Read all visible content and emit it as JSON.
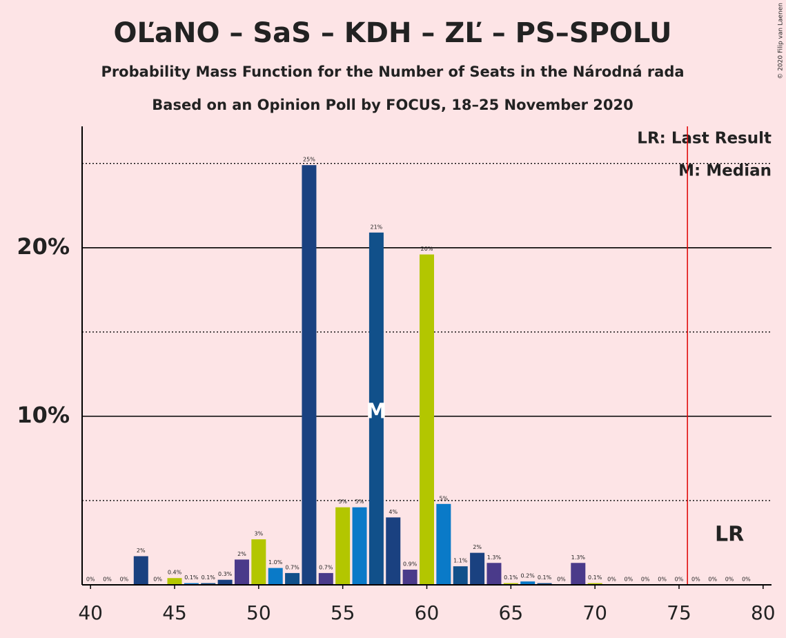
{
  "chart_data": {
    "type": "bar",
    "title": "OĽaNO – SaS – KDH – ZĽ – PS–SPOLU",
    "subtitle": "Probability Mass Function for the Number of Seats in the Národná rada",
    "subtitle2": "Based on an Opinion Poll by FOCUS, 18–25 November 2020",
    "copyright": "© 2020 Filip van Laenen",
    "legend_lr": "LR: Last Result",
    "legend_median": "M: Median",
    "lr_label": "LR",
    "median_label": "M",
    "median": 57,
    "last_result": 75.5,
    "x": [
      40,
      41,
      42,
      43,
      44,
      45,
      46,
      47,
      48,
      49,
      50,
      51,
      52,
      53,
      54,
      55,
      56,
      57,
      58,
      59,
      60,
      61,
      62,
      63,
      64,
      65,
      66,
      67,
      68,
      69,
      70,
      71,
      72,
      73,
      74,
      75,
      76,
      77,
      78,
      79
    ],
    "values": [
      0,
      0,
      0,
      1.7,
      0,
      0.4,
      0.1,
      0.1,
      0.3,
      1.5,
      2.7,
      1.0,
      0.7,
      24.9,
      0.7,
      4.6,
      4.6,
      20.9,
      4.0,
      0.9,
      19.6,
      4.8,
      1.1,
      1.9,
      1.3,
      0.1,
      0.2,
      0.1,
      0,
      1.3,
      0.1,
      0,
      0,
      0,
      0,
      0,
      0,
      0,
      0,
      0
    ],
    "value_labels": [
      "0%",
      "0%",
      "0%",
      "2%",
      "0%",
      "0.4%",
      "0.1%",
      "0.1%",
      "0.3%",
      "2%",
      "3%",
      "1.0%",
      "0.7%",
      "25%",
      "0.7%",
      "5%",
      "5%",
      "21%",
      "4%",
      "0.9%",
      "20%",
      "5%",
      "1.1%",
      "2%",
      "1.3%",
      "0.1%",
      "0.2%",
      "0.1%",
      "0%",
      "1.3%",
      "0.1%",
      "0%",
      "0%",
      "0%",
      "0%",
      "0%",
      "0%",
      "0%",
      "0%",
      "0%"
    ],
    "colors": [
      "#b3c600",
      "#0a7ac8",
      "#11508a",
      "#1a4180",
      "#4a3a8a",
      "#b3c600",
      "#0a7ac8",
      "#11508a",
      "#1a4180",
      "#4a3a8a",
      "#b3c600",
      "#0a7ac8",
      "#11508a",
      "#1a4180",
      "#4a3a8a",
      "#b3c600",
      "#0a7ac8",
      "#11508a",
      "#1a4180",
      "#4a3a8a",
      "#b3c600",
      "#0a7ac8",
      "#11508a",
      "#1a4180",
      "#4a3a8a",
      "#b3c600",
      "#0a7ac8",
      "#11508a",
      "#1a4180",
      "#4a3a8a",
      "#b3c600",
      "#0a7ac8",
      "#11508a",
      "#1a4180",
      "#4a3a8a",
      "#b3c600",
      "#0a7ac8",
      "#11508a",
      "#1a4180",
      "#4a3a8a"
    ],
    "xlim": [
      39.5,
      80.5
    ],
    "xticks": [
      40,
      45,
      50,
      55,
      60,
      65,
      70,
      75,
      80
    ],
    "ylim": [
      0,
      27.2
    ],
    "yticks": [
      {
        "value": 10,
        "label": "10%"
      },
      {
        "value": 20,
        "label": "20%"
      }
    ],
    "minor_yticks": [
      5,
      15,
      25
    ],
    "grid": true
  }
}
